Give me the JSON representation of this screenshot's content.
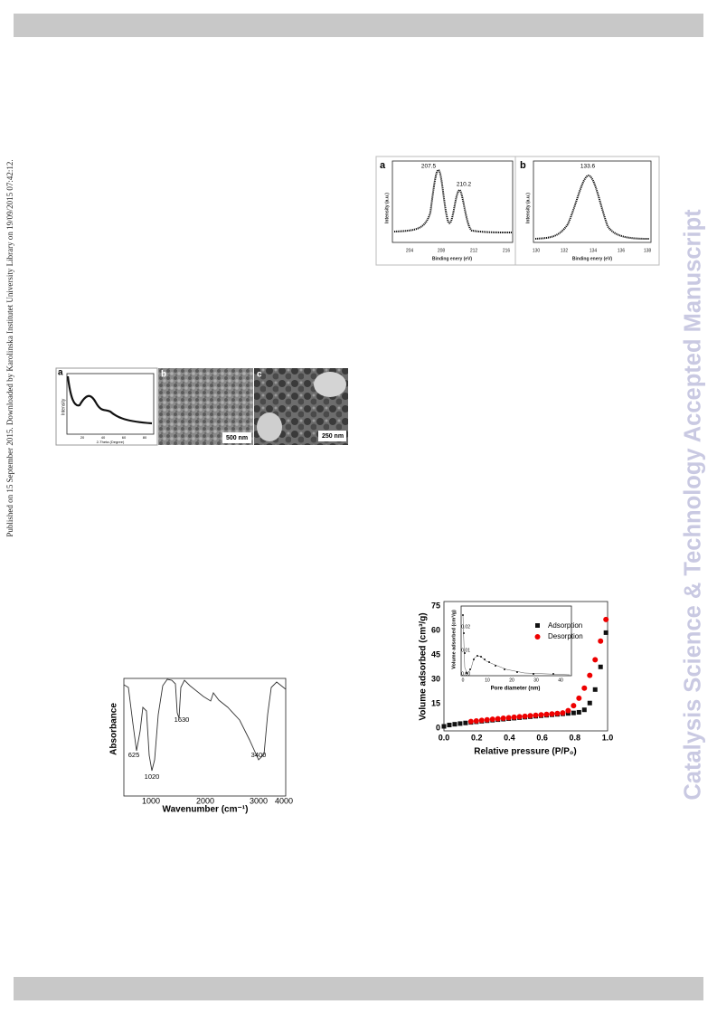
{
  "sidebar": "Published on 15 September 2015. Downloaded by Karolinska Institutet University Library on 19/09/2015 07:42:12.",
  "watermark": "Catalysis Science & Technology Accepted Manuscript",
  "xps": {
    "a": {
      "label": "a",
      "y_label": "Intensity (a.u.)",
      "x_label": "Binding enery (eV)",
      "xticks": [
        "204",
        "208",
        "212",
        "216"
      ],
      "peaks": [
        "207.5",
        "210.2"
      ]
    },
    "b": {
      "label": "b",
      "y_label": "Intensity (a.u.)",
      "x_label": "Binding enery (eV)",
      "xticks": [
        "130",
        "132",
        "134",
        "136",
        "138"
      ],
      "peaks": [
        "133.6"
      ]
    }
  },
  "xrd": {
    "labels": [
      "a",
      "b",
      "c"
    ],
    "y_label": "Intensity",
    "x_label": "2-Theta (Degree)",
    "xticks": [
      "20",
      "40",
      "60",
      "80"
    ],
    "scale_bars": [
      "500 nm",
      "250 nm"
    ]
  },
  "ftir": {
    "y_label": "Absorbance",
    "x_label": "Wavenumber (cm⁻¹)",
    "xticks": [
      "1000",
      "2000",
      "3000",
      "4000"
    ],
    "peaks": [
      "625",
      "1020",
      "1630",
      "3400"
    ]
  },
  "bet": {
    "y_label": "Volume adsorbed (cm³/g)",
    "x_label": "Relative pressure (P/P₀)",
    "yticks": [
      "0",
      "15",
      "30",
      "45",
      "60",
      "75"
    ],
    "xticks": [
      "0.0",
      "0.2",
      "0.4",
      "0.6",
      "0.8",
      "1.0"
    ],
    "legend": [
      "Adsorption",
      "Desorption"
    ],
    "inset": {
      "y_label": "Volume adsorbed (cm³/g)",
      "x_label": "Pore diameter (nm)",
      "yticks": [
        "0.00",
        "0.01",
        "0.02"
      ],
      "xticks": [
        "0",
        "10",
        "20",
        "30",
        "40"
      ]
    }
  }
}
